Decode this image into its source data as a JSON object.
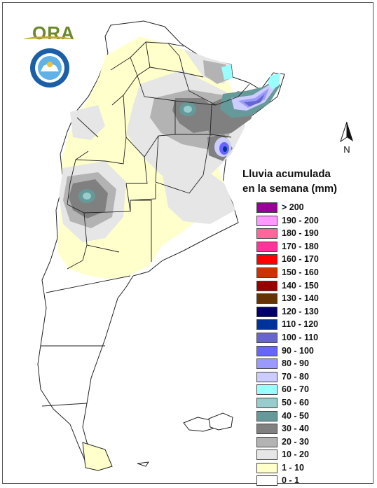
{
  "logo": {
    "ora_text": "ORA"
  },
  "north_label": "N",
  "legend": {
    "title_line1": "Lluvia acumulada",
    "title_line2": "en la semana (mm)",
    "items": [
      {
        "label": "> 200",
        "color": "#990099"
      },
      {
        "label": "190 - 200",
        "color": "#ff99ff"
      },
      {
        "label": "180 - 190",
        "color": "#ff6699"
      },
      {
        "label": "170 - 180",
        "color": "#ff3399"
      },
      {
        "label": "160 - 170",
        "color": "#ff0000"
      },
      {
        "label": "150 - 160",
        "color": "#cc3300"
      },
      {
        "label": "140 - 150",
        "color": "#990000"
      },
      {
        "label": "130 - 140",
        "color": "#663300"
      },
      {
        "label": "120 - 130",
        "color": "#000066"
      },
      {
        "label": "110 - 120",
        "color": "#003399"
      },
      {
        "label": "100 - 110",
        "color": "#6666cc"
      },
      {
        "label": "90 - 100",
        "color": "#6666ff"
      },
      {
        "label": "80 - 90",
        "color": "#9999ff"
      },
      {
        "label": "70 - 80",
        "color": "#ccccff"
      },
      {
        "label": "60 - 70",
        "color": "#99ffff"
      },
      {
        "label": "50 - 60",
        "color": "#99cccc"
      },
      {
        "label": "40 - 50",
        "color": "#669999"
      },
      {
        "label": "30 - 40",
        "color": "#808080"
      },
      {
        "label": "20 - 30",
        "color": "#b3b3b3"
      },
      {
        "label": "10 - 20",
        "color": "#e6e6e6"
      },
      {
        "label": "1 - 10",
        "color": "#ffffcc"
      },
      {
        "label": "0 - 1",
        "color": "#ffffff"
      }
    ]
  }
}
